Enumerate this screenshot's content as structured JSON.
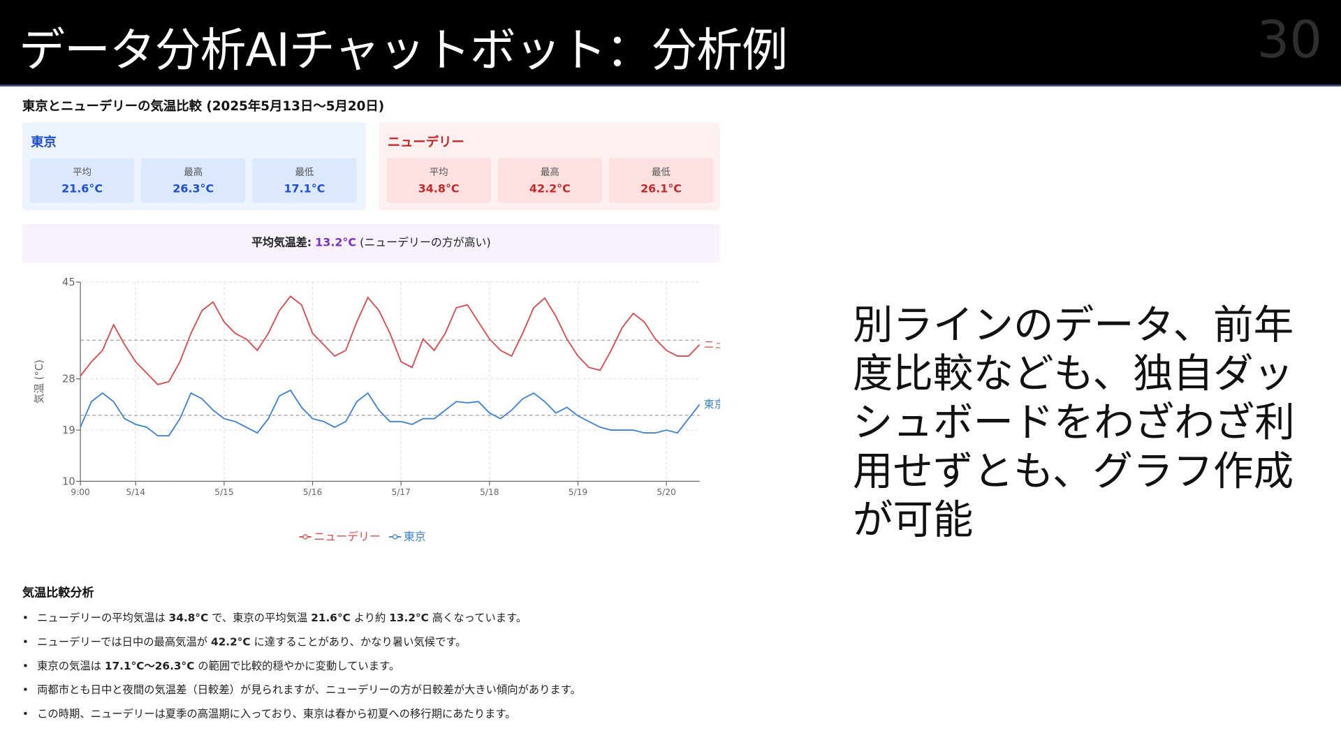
{
  "header": {
    "title": "データ分析AIチャットボット：分析例",
    "page_number": "30"
  },
  "summary_title": "東京とニューデリーの気温比較 (2025年5月13日〜5月20日)",
  "cities": [
    {
      "name": "東京",
      "stats": [
        {
          "label": "平均",
          "value": "21.6°C"
        },
        {
          "label": "最高",
          "value": "26.3°C"
        },
        {
          "label": "最低",
          "value": "17.1°C"
        }
      ]
    },
    {
      "name": "ニューデリー",
      "stats": [
        {
          "label": "平均",
          "value": "34.8°C"
        },
        {
          "label": "最高",
          "value": "42.2°C"
        },
        {
          "label": "最低",
          "value": "26.1°C"
        }
      ]
    }
  ],
  "difference": {
    "label": "平均気温差:",
    "value": "13.2°C",
    "note": "(ニューデリーの方が高い)"
  },
  "chart_data": {
    "type": "line",
    "y_label": "気温 (°C)",
    "ylim": [
      10,
      45
    ],
    "yticks": [
      10,
      19,
      28,
      45
    ],
    "grid": true,
    "legend": "bottom",
    "reference_lines": [
      34.8,
      21.6
    ],
    "categories": [
      "9:00",
      null,
      null,
      null,
      null,
      "5/14",
      null,
      null,
      null,
      null,
      null,
      null,
      null,
      "5/15",
      null,
      null,
      null,
      null,
      null,
      null,
      null,
      "5/16",
      null,
      null,
      null,
      null,
      null,
      null,
      null,
      "5/17",
      null,
      null,
      null,
      null,
      null,
      null,
      null,
      "5/18",
      null,
      null,
      null,
      null,
      null,
      null,
      null,
      "5/19",
      null,
      null,
      null,
      null,
      null,
      null,
      null,
      "5/20",
      null,
      null,
      null
    ],
    "series": [
      {
        "name": "ニューデリー",
        "color": "#e0474c",
        "values": [
          28.5,
          31,
          33,
          37.5,
          34,
          31,
          29,
          27,
          27.5,
          31,
          36,
          40,
          41.5,
          38,
          36,
          35,
          33,
          36,
          40,
          42.5,
          41,
          36,
          34,
          32,
          33,
          38,
          42.3,
          40,
          36,
          31,
          30,
          35,
          33,
          36,
          40.5,
          41,
          38,
          35,
          33,
          32,
          36,
          40.5,
          42.2,
          39,
          35,
          32,
          30,
          29.5,
          33,
          37,
          39.5,
          38,
          35,
          33,
          32,
          32,
          34
        ]
      },
      {
        "name": "東京",
        "color": "#3b82d6",
        "values": [
          19.5,
          24,
          25.5,
          24,
          21,
          20,
          19.5,
          18,
          18,
          21,
          25.5,
          24.5,
          22.5,
          21,
          20.5,
          19.5,
          18.5,
          21,
          25,
          26,
          23,
          21,
          20.5,
          19.5,
          20.5,
          24,
          25.5,
          22.5,
          20.5,
          20.5,
          20,
          21,
          21,
          22.5,
          24,
          23.8,
          24,
          22,
          21,
          22.5,
          24.5,
          25.5,
          24,
          22,
          23,
          21.5,
          20.5,
          19.5,
          19,
          19,
          19,
          18.5,
          18.5,
          19,
          18.5,
          21,
          23.5
        ]
      }
    ]
  },
  "analysis": {
    "title": "気温比較分析",
    "bullets": [
      [
        "ニューデリーの平均気温は ",
        "34.8°C",
        " で、東京の平均気温 ",
        "21.6°C",
        " より約 ",
        "13.2°C",
        " 高くなっています。"
      ],
      [
        "ニューデリーでは日中の最高気温が ",
        "42.2°C",
        " に達することがあり、かなり暑い気候です。"
      ],
      [
        "東京の気温は ",
        "17.1°C〜26.3°C",
        " の範囲で比較的穏やかに変動しています。"
      ],
      [
        "両都市とも日中と夜間の気温差（日較差）が見られますが、ニューデリーの方が日較差が大きい傾向があります。"
      ],
      [
        "この時期、ニューデリーは夏季の高温期に入っており、東京は春から初夏への移行期にあたります。"
      ]
    ]
  },
  "side_text": "別ラインのデータ、前年度比較なども、独自ダッシュボードをわざわざ利用せずとも、グラフ作成が可能"
}
